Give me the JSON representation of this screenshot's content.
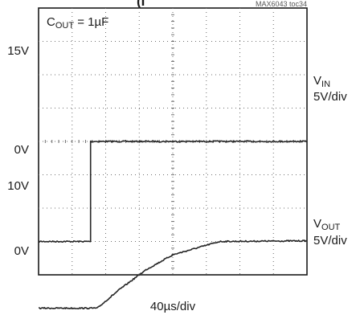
{
  "chart_data": {
    "type": "line",
    "reference": "MAX6043 toc34",
    "annotation": {
      "main": "C",
      "sub": "OUT",
      "rest": " = 1µF"
    },
    "xlabel": "40µs/div",
    "x_divisions": 8,
    "y_divisions": 8,
    "traces": [
      {
        "label_main": "V",
        "label_sub": "IN",
        "scale": "5V/div",
        "ticks": [
          "15V",
          "0V"
        ],
        "points": [
          [
            0,
            0
          ],
          [
            1.55,
            0
          ],
          [
            1.55,
            3
          ],
          [
            8,
            3
          ]
        ]
      },
      {
        "label_main": "V",
        "label_sub": "OUT",
        "scale": "5V/div",
        "ticks": [
          "10V",
          "0V"
        ],
        "points": [
          [
            0,
            0
          ],
          [
            1.75,
            0
          ],
          [
            2.4,
            0.55
          ],
          [
            3.2,
            1.15
          ],
          [
            4.0,
            1.6
          ],
          [
            5.4,
            2.0
          ],
          [
            8,
            2.02
          ]
        ]
      }
    ]
  }
}
